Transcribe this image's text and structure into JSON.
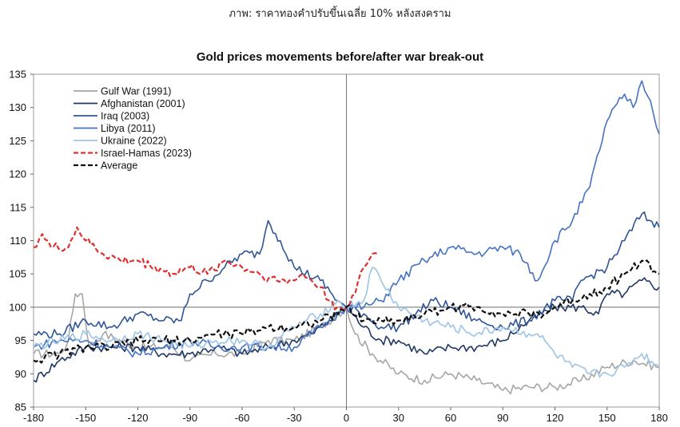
{
  "caption": "ภาพ: ราคาทองคำปรับขึ้นเฉลี่ย 10% หลังสงคราม",
  "chart_data": {
    "type": "line",
    "title": "Gold prices movements before/after war break-out",
    "xlabel": "",
    "ylabel": "",
    "xlim": [
      -180,
      180
    ],
    "ylim": [
      85,
      135
    ],
    "x_ticks": [
      "-180",
      "-150",
      "-120",
      "-90",
      "-60",
      "-30",
      "0",
      "30",
      "60",
      "90",
      "120",
      "150",
      "180"
    ],
    "y_ticks": [
      "85",
      "90",
      "95",
      "100",
      "105",
      "110",
      "115",
      "120",
      "125",
      "130",
      "135"
    ],
    "reference_lines": {
      "x": 0,
      "y": 100
    },
    "legend_position": "top-left",
    "series": [
      {
        "name": "Gulf War (1991)",
        "color": "#a6a6a6",
        "dash": "solid",
        "points": [
          [
            -180,
            93
          ],
          [
            -165,
            93
          ],
          [
            -160,
            95
          ],
          [
            -156,
            102
          ],
          [
            -152,
            102
          ],
          [
            -148,
            94
          ],
          [
            -140,
            96
          ],
          [
            -120,
            94
          ],
          [
            -100,
            94
          ],
          [
            -90,
            92
          ],
          [
            -75,
            93
          ],
          [
            -60,
            93
          ],
          [
            -45,
            95
          ],
          [
            -30,
            95
          ],
          [
            -15,
            97
          ],
          [
            -5,
            99
          ],
          [
            0,
            100
          ],
          [
            5,
            96
          ],
          [
            15,
            93
          ],
          [
            30,
            90
          ],
          [
            45,
            89
          ],
          [
            60,
            90
          ],
          [
            75,
            89
          ],
          [
            90,
            87.5
          ],
          [
            105,
            88
          ],
          [
            120,
            88
          ],
          [
            135,
            89
          ],
          [
            150,
            91
          ],
          [
            165,
            92
          ],
          [
            180,
            91
          ]
        ]
      },
      {
        "name": "Afghanistan (2001)",
        "color": "#1f3864",
        "dash": "solid",
        "points": [
          [
            -180,
            89
          ],
          [
            -165,
            92
          ],
          [
            -150,
            94
          ],
          [
            -135,
            94
          ],
          [
            -120,
            94
          ],
          [
            -105,
            93
          ],
          [
            -90,
            93
          ],
          [
            -75,
            94
          ],
          [
            -60,
            93
          ],
          [
            -45,
            94
          ],
          [
            -30,
            95
          ],
          [
            -20,
            96
          ],
          [
            -10,
            98
          ],
          [
            0,
            100
          ],
          [
            10,
            97
          ],
          [
            20,
            95
          ],
          [
            30,
            95
          ],
          [
            45,
            93
          ],
          [
            60,
            94
          ],
          [
            75,
            94
          ],
          [
            90,
            95
          ],
          [
            105,
            98
          ],
          [
            120,
            100
          ],
          [
            135,
            100
          ],
          [
            145,
            99
          ],
          [
            150,
            102
          ],
          [
            160,
            102
          ],
          [
            170,
            104
          ],
          [
            180,
            103
          ]
        ]
      },
      {
        "name": "Iraq (2003)",
        "color": "#2f5597",
        "dash": "solid",
        "points": [
          [
            -180,
            96
          ],
          [
            -165,
            96
          ],
          [
            -150,
            98
          ],
          [
            -135,
            97
          ],
          [
            -120,
            99
          ],
          [
            -105,
            98
          ],
          [
            -95,
            98
          ],
          [
            -90,
            102
          ],
          [
            -80,
            104
          ],
          [
            -70,
            106
          ],
          [
            -60,
            108
          ],
          [
            -50,
            108
          ],
          [
            -45,
            113
          ],
          [
            -38,
            110
          ],
          [
            -30,
            106
          ],
          [
            -15,
            104
          ],
          [
            -5,
            101
          ],
          [
            0,
            100
          ],
          [
            10,
            99
          ],
          [
            20,
            97
          ],
          [
            30,
            97
          ],
          [
            40,
            99
          ],
          [
            50,
            101
          ],
          [
            60,
            100
          ],
          [
            75,
            98
          ],
          [
            90,
            97
          ],
          [
            105,
            98
          ],
          [
            120,
            101
          ],
          [
            130,
            101
          ],
          [
            135,
            104
          ],
          [
            150,
            106
          ],
          [
            160,
            110
          ],
          [
            170,
            114
          ],
          [
            180,
            112
          ]
        ]
      },
      {
        "name": "Libya (2011)",
        "color": "#4472c4",
        "dash": "solid",
        "points": [
          [
            -180,
            94
          ],
          [
            -165,
            95
          ],
          [
            -150,
            95
          ],
          [
            -135,
            94
          ],
          [
            -120,
            93
          ],
          [
            -105,
            94
          ],
          [
            -90,
            95
          ],
          [
            -75,
            94
          ],
          [
            -60,
            94
          ],
          [
            -45,
            94
          ],
          [
            -30,
            94
          ],
          [
            -15,
            97
          ],
          [
            -5,
            99
          ],
          [
            0,
            100
          ],
          [
            10,
            100
          ],
          [
            20,
            101
          ],
          [
            30,
            104
          ],
          [
            45,
            107
          ],
          [
            60,
            109
          ],
          [
            75,
            108
          ],
          [
            90,
            109
          ],
          [
            100,
            108
          ],
          [
            110,
            104
          ],
          [
            120,
            110
          ],
          [
            130,
            113
          ],
          [
            140,
            118
          ],
          [
            150,
            128
          ],
          [
            160,
            132
          ],
          [
            165,
            130
          ],
          [
            170,
            134
          ],
          [
            175,
            131
          ],
          [
            180,
            126
          ]
        ]
      },
      {
        "name": "Ukraine (2022)",
        "color": "#9dc3e6",
        "dash": "solid",
        "points": [
          [
            -180,
            94
          ],
          [
            -165,
            95
          ],
          [
            -150,
            96
          ],
          [
            -135,
            95
          ],
          [
            -120,
            96
          ],
          [
            -105,
            95
          ],
          [
            -90,
            94
          ],
          [
            -75,
            95
          ],
          [
            -60,
            95
          ],
          [
            -45,
            94
          ],
          [
            -30,
            97
          ],
          [
            -15,
            99
          ],
          [
            -5,
            101
          ],
          [
            0,
            100
          ],
          [
            10,
            101
          ],
          [
            15,
            106
          ],
          [
            20,
            104
          ],
          [
            30,
            100
          ],
          [
            45,
            98
          ],
          [
            60,
            97
          ],
          [
            75,
            96
          ],
          [
            90,
            97
          ],
          [
            105,
            96
          ],
          [
            110,
            96
          ],
          [
            120,
            93
          ],
          [
            130,
            91
          ],
          [
            140,
            90
          ],
          [
            150,
            90
          ],
          [
            160,
            91
          ],
          [
            170,
            93
          ],
          [
            180,
            91
          ]
        ]
      },
      {
        "name": "Israel-Hamas (2023)",
        "color": "#e03030",
        "dash": "dashed",
        "points": [
          [
            -180,
            109
          ],
          [
            -175,
            111
          ],
          [
            -170,
            109
          ],
          [
            -160,
            109
          ],
          [
            -155,
            112
          ],
          [
            -150,
            110
          ],
          [
            -140,
            108
          ],
          [
            -130,
            107
          ],
          [
            -120,
            107
          ],
          [
            -110,
            106
          ],
          [
            -100,
            105
          ],
          [
            -90,
            106
          ],
          [
            -80,
            105
          ],
          [
            -70,
            107
          ],
          [
            -60,
            106
          ],
          [
            -50,
            105
          ],
          [
            -40,
            104
          ],
          [
            -30,
            104
          ],
          [
            -25,
            105
          ],
          [
            -20,
            104
          ],
          [
            -15,
            103
          ],
          [
            -10,
            101
          ],
          [
            -5,
            100
          ],
          [
            0,
            100
          ],
          [
            5,
            102
          ],
          [
            10,
            106
          ],
          [
            15,
            108
          ],
          [
            18,
            108
          ]
        ]
      },
      {
        "name": "Average",
        "color": "#111111",
        "dash": "dashed",
        "points": [
          [
            -180,
            92
          ],
          [
            -165,
            93
          ],
          [
            -150,
            94
          ],
          [
            -135,
            94
          ],
          [
            -120,
            95
          ],
          [
            -105,
            95
          ],
          [
            -90,
            95
          ],
          [
            -75,
            96
          ],
          [
            -60,
            96
          ],
          [
            -45,
            97
          ],
          [
            -30,
            97
          ],
          [
            -15,
            98
          ],
          [
            -5,
            99
          ],
          [
            0,
            100
          ],
          [
            10,
            98
          ],
          [
            20,
            98
          ],
          [
            30,
            98
          ],
          [
            45,
            99
          ],
          [
            60,
            100
          ],
          [
            75,
            100
          ],
          [
            90,
            99
          ],
          [
            105,
            99
          ],
          [
            115,
            99
          ],
          [
            120,
            100
          ],
          [
            130,
            101
          ],
          [
            140,
            102
          ],
          [
            150,
            103
          ],
          [
            160,
            105
          ],
          [
            170,
            107
          ],
          [
            180,
            105
          ]
        ]
      }
    ]
  }
}
